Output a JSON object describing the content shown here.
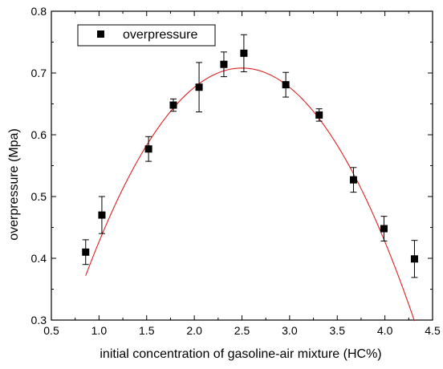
{
  "chart_data": {
    "type": "scatter",
    "title": "",
    "xlabel": "initial concentration of gasoline-air mixture (HC%)",
    "ylabel": "overpressure (Mpa)",
    "xlim": [
      0.5,
      4.5
    ],
    "ylim": [
      0.3,
      0.8
    ],
    "xticks": [
      "0.5",
      "1.0",
      "1.5",
      "2.0",
      "2.5",
      "3.0",
      "3.5",
      "4.0",
      "4.5"
    ],
    "yticks": [
      "0.3",
      "0.4",
      "0.5",
      "0.6",
      "0.7",
      "0.8"
    ],
    "grid": false,
    "legend": {
      "position": "top-left",
      "entries": [
        "overpressure"
      ]
    },
    "series": [
      {
        "name": "overpressure",
        "marker": "square",
        "color": "#000000",
        "x": [
          0.86,
          1.03,
          1.52,
          1.78,
          2.05,
          2.31,
          2.52,
          2.96,
          3.31,
          3.67,
          3.99,
          4.31
        ],
        "y": [
          0.41,
          0.47,
          0.577,
          0.648,
          0.677,
          0.714,
          0.732,
          0.681,
          0.632,
          0.527,
          0.448,
          0.399
        ],
        "error": [
          0.02,
          0.03,
          0.02,
          0.01,
          0.04,
          0.02,
          0.03,
          0.02,
          0.01,
          0.02,
          0.02,
          0.03
        ]
      }
    ],
    "fit": {
      "type": "quadratic",
      "color": "#dd2222",
      "x_range": [
        0.86,
        4.31
      ],
      "vertex_x": 2.5,
      "vertex_y": 0.708,
      "curvature": -0.125
    }
  }
}
